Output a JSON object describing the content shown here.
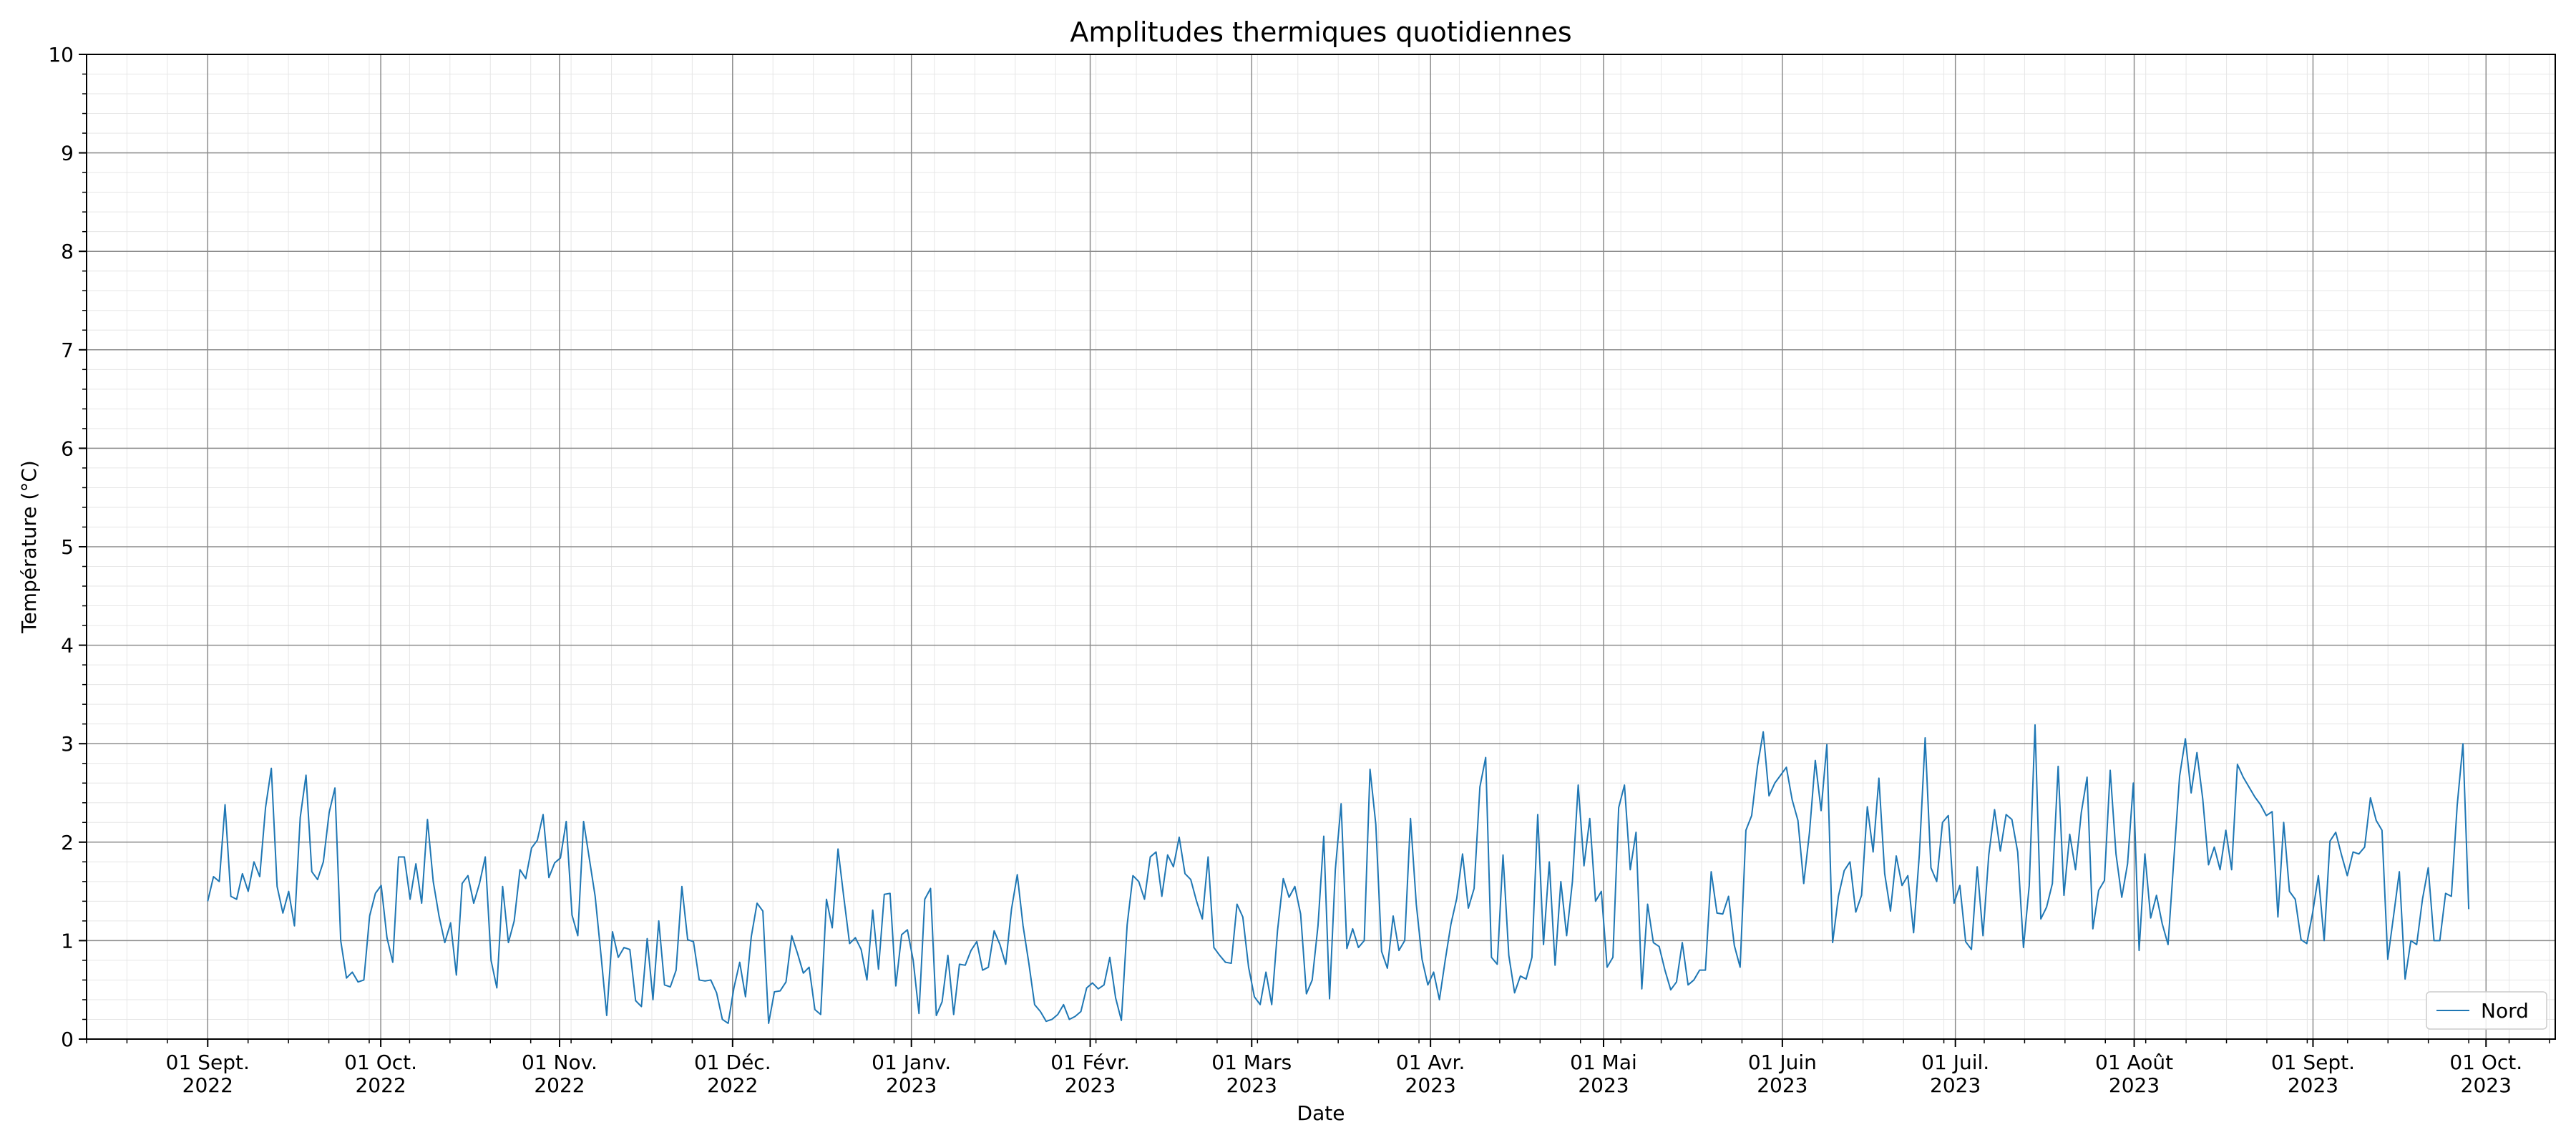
{
  "chart_data": {
    "type": "line",
    "title": "Amplitudes thermiques quotidiennes",
    "xlabel": "Date",
    "ylabel": "Température (°C)",
    "ylim": [
      0,
      10
    ],
    "yticks": [
      "0",
      "1",
      "2",
      "3",
      "4",
      "5",
      "6",
      "7",
      "8",
      "9",
      "10"
    ],
    "xlim": [
      "2022-08-11",
      "2023-10-13"
    ],
    "xticks": [
      {
        "date": "2022-09-01",
        "label": [
          "01 Sept.",
          "2022"
        ]
      },
      {
        "date": "2022-10-01",
        "label": [
          "01 Oct.",
          "2022"
        ]
      },
      {
        "date": "2022-11-01",
        "label": [
          "01 Nov.",
          "2022"
        ]
      },
      {
        "date": "2022-12-01",
        "label": [
          "01 Déc.",
          "2022"
        ]
      },
      {
        "date": "2023-01-01",
        "label": [
          "01 Janv.",
          "2023"
        ]
      },
      {
        "date": "2023-02-01",
        "label": [
          "01 Févr.",
          "2023"
        ]
      },
      {
        "date": "2023-03-01",
        "label": [
          "01 Mars",
          "2023"
        ]
      },
      {
        "date": "2023-04-01",
        "label": [
          "01 Avr.",
          "2023"
        ]
      },
      {
        "date": "2023-05-01",
        "label": [
          "01 Mai",
          "2023"
        ]
      },
      {
        "date": "2023-06-01",
        "label": [
          "01 Juin",
          "2023"
        ]
      },
      {
        "date": "2023-07-01",
        "label": [
          "01 Juil.",
          "2023"
        ]
      },
      {
        "date": "2023-08-01",
        "label": [
          "01 Août",
          "2023"
        ]
      },
      {
        "date": "2023-09-01",
        "label": [
          "01 Sept.",
          "2023"
        ]
      },
      {
        "date": "2023-10-01",
        "label": [
          "01 Oct.",
          "2023"
        ]
      }
    ],
    "grid": true,
    "legend_position": "bottom-right",
    "series": [
      {
        "name": "Nord",
        "color": "#1f77b4",
        "x_start": "2022-09-01",
        "x_end": "2023-09-28",
        "values": [
          1.4,
          1.65,
          1.6,
          2.38,
          1.45,
          1.42,
          1.68,
          1.5,
          1.8,
          1.65,
          2.35,
          2.75,
          1.55,
          1.28,
          1.5,
          1.15,
          2.25,
          2.68,
          1.7,
          1.62,
          1.8,
          2.3,
          2.55,
          1.0,
          0.62,
          0.68,
          0.58,
          0.6,
          1.25,
          1.48,
          1.56,
          1.03,
          0.78,
          1.85,
          1.85,
          1.42,
          1.78,
          1.38,
          2.23,
          1.6,
          1.25,
          0.98,
          1.18,
          0.65,
          1.58,
          1.66,
          1.38,
          1.58,
          1.85,
          0.8,
          0.52,
          1.55,
          0.98,
          1.2,
          1.72,
          1.63,
          1.94,
          2.02,
          2.28,
          1.64,
          1.79,
          1.84,
          2.21,
          1.26,
          1.05,
          2.21,
          1.83,
          1.45,
          0.86,
          0.24,
          1.09,
          0.83,
          0.93,
          0.91,
          0.39,
          0.33,
          1.02,
          0.4,
          1.2,
          0.55,
          0.53,
          0.7,
          1.55,
          1.01,
          0.99,
          0.6,
          0.59,
          0.6,
          0.47,
          0.2,
          0.16,
          0.52,
          0.78,
          0.43,
          1.04,
          1.38,
          1.3,
          0.16,
          0.48,
          0.49,
          0.58,
          1.05,
          0.87,
          0.67,
          0.73,
          0.3,
          0.25,
          1.42,
          1.13,
          1.93,
          1.44,
          0.97,
          1.03,
          0.91,
          0.6,
          1.31,
          0.71,
          1.47,
          1.48,
          0.54,
          1.06,
          1.11,
          0.8,
          0.26,
          1.42,
          1.53,
          0.24,
          0.38,
          0.85,
          0.25,
          0.76,
          0.75,
          0.9,
          0.99,
          0.7,
          0.73,
          1.1,
          0.96,
          0.76,
          1.32,
          1.67,
          1.15,
          0.77,
          0.35,
          0.28,
          0.18,
          0.2,
          0.25,
          0.35,
          0.2,
          0.23,
          0.28,
          0.52,
          0.57,
          0.51,
          0.55,
          0.83,
          0.42,
          0.19,
          1.16,
          1.66,
          1.6,
          1.42,
          1.85,
          1.9,
          1.45,
          1.87,
          1.75,
          2.05,
          1.68,
          1.62,
          1.4,
          1.22,
          1.85,
          0.93,
          0.85,
          0.78,
          0.77,
          1.37,
          1.24,
          0.73,
          0.43,
          0.35,
          0.68,
          0.35,
          1.1,
          1.63,
          1.44,
          1.55,
          1.27,
          0.46,
          0.6,
          1.15,
          2.06,
          0.41,
          1.72,
          2.39,
          0.92,
          1.12,
          0.93,
          1.0,
          2.74,
          2.18,
          0.89,
          0.72,
          1.25,
          0.9,
          1.0,
          2.24,
          1.37,
          0.81,
          0.55,
          0.68,
          0.4,
          0.8,
          1.17,
          1.43,
          1.88,
          1.33,
          1.53,
          2.56,
          2.86,
          0.83,
          0.76,
          1.87,
          0.85,
          0.47,
          0.64,
          0.61,
          0.83,
          2.28,
          0.96,
          1.8,
          0.75,
          1.6,
          1.05,
          1.6,
          2.58,
          1.76,
          2.24,
          1.4,
          1.5,
          0.73,
          0.83,
          2.35,
          2.58,
          1.72,
          2.1,
          0.51,
          1.37,
          0.98,
          0.94,
          0.7,
          0.5,
          0.58,
          0.98,
          0.55,
          0.6,
          0.7,
          0.7,
          1.7,
          1.28,
          1.27,
          1.45,
          0.95,
          0.73,
          2.12,
          2.27,
          2.77,
          3.12,
          2.47,
          2.6,
          2.68,
          2.76,
          2.43,
          2.22,
          1.58,
          2.1,
          2.83,
          2.32,
          2.99,
          0.98,
          1.45,
          1.71,
          1.8,
          1.29,
          1.46,
          2.36,
          1.9,
          2.65,
          1.68,
          1.3,
          1.86,
          1.56,
          1.66,
          1.08,
          1.88,
          3.06,
          1.74,
          1.6,
          2.2,
          2.27,
          1.38,
          1.56,
          0.99,
          0.91,
          1.75,
          1.05,
          1.87,
          2.33,
          1.91,
          2.28,
          2.23,
          1.9,
          0.93,
          1.56,
          3.19,
          1.22,
          1.34,
          1.58,
          2.77,
          1.46,
          2.08,
          1.72,
          2.3,
          2.66,
          1.12,
          1.51,
          1.61,
          2.73,
          1.88,
          1.44,
          1.78,
          2.6,
          0.9,
          1.88,
          1.23,
          1.46,
          1.17,
          0.96,
          1.82,
          2.67,
          3.05,
          2.5,
          2.91,
          2.44,
          1.77,
          1.95,
          1.72,
          2.12,
          1.72,
          2.79,
          2.66,
          2.56,
          2.46,
          2.38,
          2.27,
          2.31,
          1.24,
          2.2,
          1.5,
          1.42,
          1.01,
          0.97,
          1.28,
          1.66,
          1.0,
          2.01,
          2.1,
          1.87,
          1.66,
          1.9,
          1.88,
          1.95,
          2.45,
          2.22,
          2.12,
          0.81,
          1.25,
          1.7,
          0.61,
          1.0,
          0.96,
          1.42,
          1.74,
          1.0,
          1.0,
          1.48,
          1.45,
          2.37,
          3.0,
          1.32
        ]
      }
    ]
  }
}
